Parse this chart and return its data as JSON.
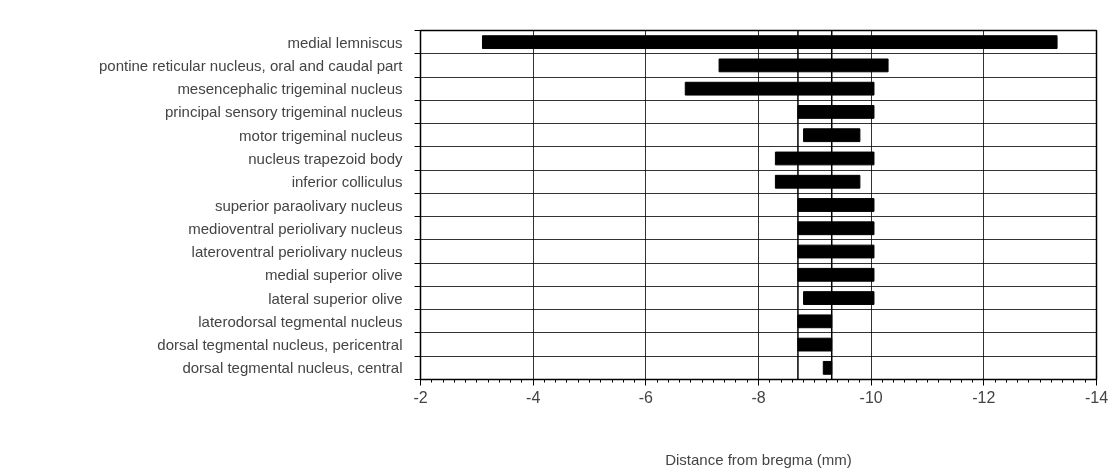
{
  "chart_data": {
    "type": "bar",
    "orientation": "horizontal",
    "xlabel": "Distance from bregma (mm)",
    "categories": [
      "medial lemniscus",
      "pontine reticular nucleus, oral and caudal part",
      "mesencephalic trigeminal nucleus",
      "principal sensory trigeminal nucleus",
      "motor trigeminal nucleus",
      "nucleus trapezoid body",
      "inferior colliculus",
      "superior paraolivary nucleus",
      "medioventral periolivary nucleus",
      "lateroventral periolivary nucleus",
      "medial superior olive",
      "lateral superior olive",
      "laterodorsal tegmental nucleus",
      "dorsal tegmental nucleus, pericentral",
      "dorsal tegmental nucleus, central"
    ],
    "base": [
      -3.1,
      -7.3,
      -6.7,
      -8.7,
      -8.8,
      -8.3,
      -8.3,
      -8.7,
      -8.7,
      -8.7,
      -8.7,
      -8.8,
      -8.7,
      -8.7,
      -9.15
    ],
    "values": [
      -10.2,
      -3.0,
      -3.35,
      -1.35,
      -1.0,
      -1.75,
      -1.5,
      -1.35,
      -1.35,
      -1.35,
      -1.35,
      -1.25,
      -0.6,
      -0.6,
      -0.15
    ],
    "color": "#000000",
    "xlim": [
      -2,
      -14
    ],
    "xticks": [
      -2,
      -4,
      -6,
      -8,
      -10,
      -12,
      -14
    ],
    "grid": true,
    "ref_lines": [
      {
        "axis": "x",
        "value": -8.7,
        "color": "#000000"
      },
      {
        "axis": "x",
        "value": -9.3,
        "color": "#000000"
      }
    ]
  }
}
